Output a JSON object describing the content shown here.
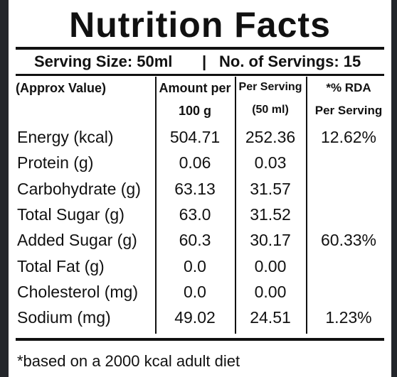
{
  "title": "Nutrition Facts",
  "serving": {
    "size": "Serving Size: 50ml",
    "separator": "|",
    "count": "No. of Servings: 15"
  },
  "table": {
    "header": [
      [
        "(Approx Value)"
      ],
      [
        "Amount per",
        "100 g"
      ],
      [
        "Per Serving",
        "(50 ml)"
      ],
      [
        "*% RDA",
        "Per Serving"
      ]
    ],
    "rows": [
      [
        "Energy (kcal)",
        "504.71",
        "252.36",
        "12.62%"
      ],
      [
        "Protein (g)",
        "0.06",
        "0.03",
        null
      ],
      [
        "Carbohydrate (g)",
        "63.13",
        "31.57",
        null
      ],
      [
        "Total Sugar (g)",
        "63.0",
        "31.52",
        null
      ],
      [
        "Added Sugar (g)",
        "60.3",
        "30.17",
        "60.33%"
      ],
      [
        "Total Fat (g)",
        "0.0",
        "0.00",
        null
      ],
      [
        "Cholesterol (mg)",
        "0.0",
        "0.00",
        null
      ],
      [
        "Sodium (mg)",
        "49.02",
        "24.51",
        "1.23%"
      ]
    ]
  },
  "footnote": "*based on a 2000 kcal adult diet"
}
